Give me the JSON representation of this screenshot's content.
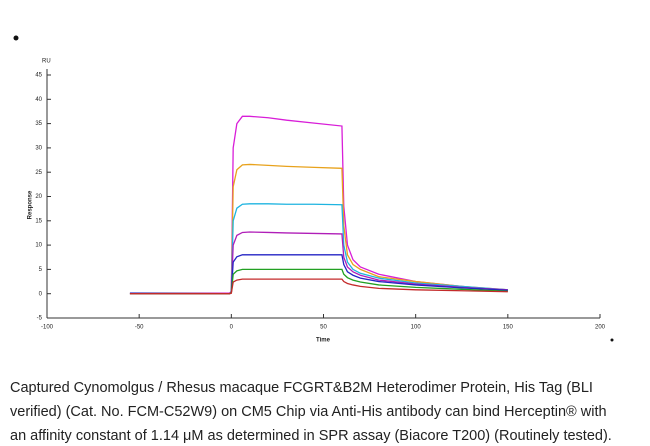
{
  "chart_data": {
    "type": "line",
    "unit_label": "RU",
    "ylabel": "Response",
    "xlabel": "Time",
    "x": [
      -55,
      -1,
      0,
      1,
      3,
      6,
      10,
      20,
      30,
      45,
      60,
      61,
      63,
      66,
      70,
      80,
      100,
      125,
      150
    ],
    "series": [
      {
        "color": "#d81ed8",
        "values": [
          0.2,
          0.1,
          0.5,
          30,
          35,
          36.5,
          36.5,
          36.2,
          35.7,
          35.1,
          34.5,
          18,
          10,
          7,
          5.5,
          4,
          2.5,
          1.5,
          0.6
        ]
      },
      {
        "color": "#e8a21c",
        "values": [
          0.1,
          0,
          0.4,
          22,
          25.5,
          26.5,
          26.6,
          26.4,
          26.2,
          26,
          25.8,
          14,
          8,
          6,
          5,
          3.5,
          2.5,
          1.5,
          0.8
        ]
      },
      {
        "color": "#1eb4e0",
        "values": [
          0.1,
          0,
          0.3,
          15,
          17.6,
          18.4,
          18.5,
          18.5,
          18.4,
          18.4,
          18.3,
          10,
          6.5,
          5,
          4.2,
          3.2,
          2.2,
          1.5,
          0.8
        ]
      },
      {
        "color": "#b01eb8",
        "values": [
          0,
          0,
          0.3,
          10,
          12,
          12.6,
          12.7,
          12.6,
          12.5,
          12.4,
          12.3,
          7.5,
          5.5,
          4.5,
          3.8,
          2.8,
          2,
          1.3,
          0.8
        ]
      },
      {
        "color": "#2424c4",
        "values": [
          0,
          0,
          0.2,
          6.5,
          7.6,
          8,
          8,
          8,
          8,
          8,
          8,
          6,
          4.5,
          3.8,
          3.2,
          2.5,
          1.8,
          1.2,
          0.7
        ]
      },
      {
        "color": "#22a022",
        "values": [
          0,
          0,
          0.2,
          4,
          4.7,
          5,
          5,
          5,
          5,
          5,
          5,
          4,
          3.3,
          2.8,
          2.4,
          1.8,
          1.3,
          0.9,
          0.5
        ]
      },
      {
        "color": "#c42a2a",
        "values": [
          0,
          0,
          0.1,
          2.4,
          2.8,
          3,
          3,
          3,
          3,
          3,
          3,
          2.5,
          2.1,
          1.8,
          1.5,
          1.1,
          0.8,
          0.6,
          0.4
        ]
      }
    ],
    "xlim": [
      -100,
      200
    ],
    "xticks": [
      -100,
      -50,
      0,
      50,
      100,
      150,
      200
    ],
    "ylim": [
      -5,
      45
    ],
    "yticks": [
      -5,
      0,
      5,
      10,
      15,
      20,
      25,
      30,
      35,
      40,
      45
    ]
  },
  "caption": [
    "Captured Cynomolgus / Rhesus macaque FCGRT&B2M Heterodimer Protein, His Tag (BLI",
    "verified) (Cat. No. FCM-C52W9) on CM5 Chip via Anti-His antibody can bind Herceptin® with",
    "an affinity constant of 1.14 μM as determined in SPR assay (Biacore T200) (Routinely tested)."
  ]
}
